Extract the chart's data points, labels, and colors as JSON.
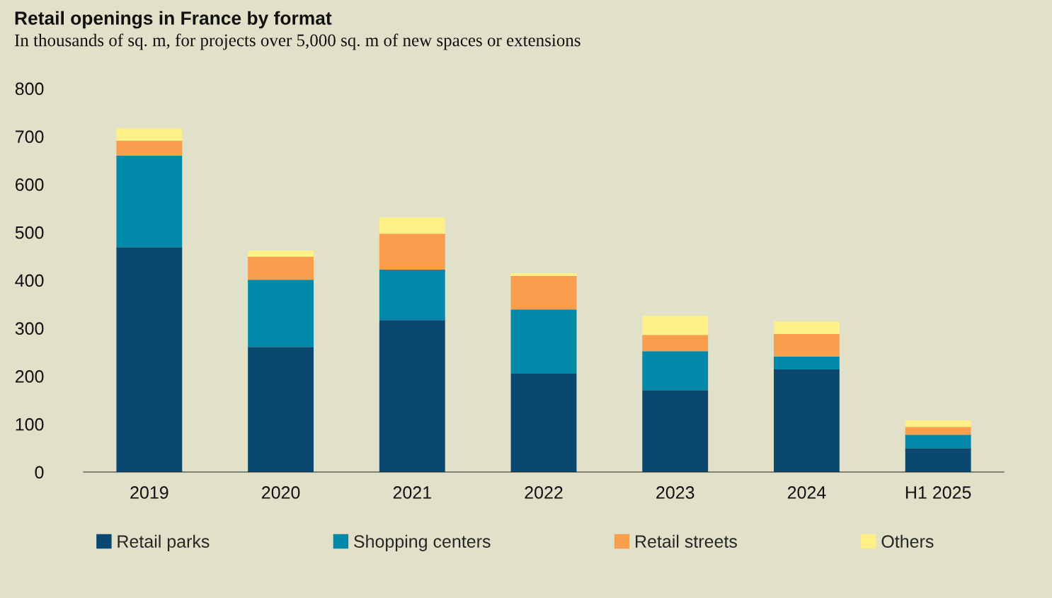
{
  "chart_data": {
    "type": "bar",
    "title": "Retail openings in France by format",
    "subtitle": "In thousands of sq. m, for projects over 5,000 sq. m of new spaces or extensions",
    "categories": [
      "2019",
      "2020",
      "2021",
      "2022",
      "2023",
      "2024",
      "H1 2025"
    ],
    "stacked": true,
    "series": [
      {
        "name": "Retail parks",
        "color": "#0b4870",
        "values": [
          469,
          261,
          317,
          205,
          171,
          214,
          50
        ]
      },
      {
        "name": "Shopping centers",
        "color": "#0089a8",
        "values": [
          191,
          140,
          105,
          134,
          81,
          27,
          28
        ]
      },
      {
        "name": "Retail streets",
        "color": "#f99e4c",
        "values": [
          31,
          48,
          75,
          70,
          34,
          47,
          16
        ]
      },
      {
        "name": "Others",
        "color": "#fef086",
        "values": [
          26,
          13,
          34,
          6,
          40,
          26,
          14
        ]
      }
    ],
    "ylim": [
      0,
      800
    ],
    "yticks": [
      0,
      100,
      200,
      300,
      400,
      500,
      600,
      700,
      800
    ],
    "grid": false,
    "legend": "bottom"
  }
}
